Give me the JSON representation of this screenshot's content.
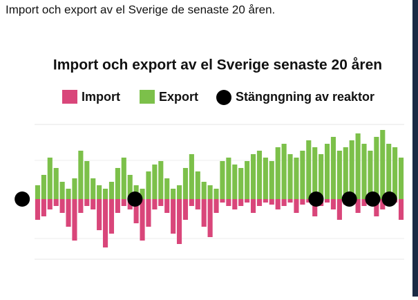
{
  "post": {
    "caption": "Import och export av el Sverige de senaste 20 åren."
  },
  "chart_data": {
    "type": "bar",
    "title": "Import och export av el Sverige senaste 20 åren",
    "series": [
      {
        "name": "Import",
        "color": "#d9467a",
        "values": [
          -30,
          -25,
          -15,
          -10,
          -20,
          -40,
          -60,
          -20,
          -10,
          -15,
          -45,
          -70,
          -50,
          -20,
          -10,
          -15,
          -35,
          -60,
          -40,
          -15,
          -10,
          -20,
          -50,
          -65,
          -30,
          -10,
          -15,
          -40,
          -55,
          -20,
          -5,
          -10,
          -15,
          -10,
          -5,
          -20,
          -10,
          -5,
          -8,
          -15,
          -10,
          -5,
          -20,
          -8,
          -5,
          -25,
          -10,
          -5,
          -15,
          -30,
          -8,
          -5,
          -20,
          -10,
          -5,
          -25,
          -15,
          -10,
          -5,
          -30
        ]
      },
      {
        "name": "Export",
        "color": "#7cc04a",
        "values": [
          20,
          35,
          60,
          45,
          25,
          15,
          30,
          70,
          55,
          30,
          20,
          15,
          25,
          45,
          60,
          35,
          20,
          15,
          40,
          50,
          55,
          30,
          15,
          20,
          45,
          65,
          40,
          25,
          20,
          15,
          55,
          60,
          50,
          45,
          55,
          65,
          70,
          60,
          55,
          75,
          80,
          65,
          60,
          70,
          85,
          75,
          65,
          80,
          90,
          70,
          75,
          85,
          95,
          80,
          70,
          90,
          100,
          80,
          75,
          60
        ]
      }
    ],
    "events": {
      "name": "Stängngning av reaktor",
      "color": "#000000",
      "x": [
        -2.5,
        15.8,
        45.2,
        50.6,
        54.4,
        57.1
      ]
    },
    "xlim": [
      0,
      60
    ],
    "ylim": [
      -100,
      100
    ]
  }
}
